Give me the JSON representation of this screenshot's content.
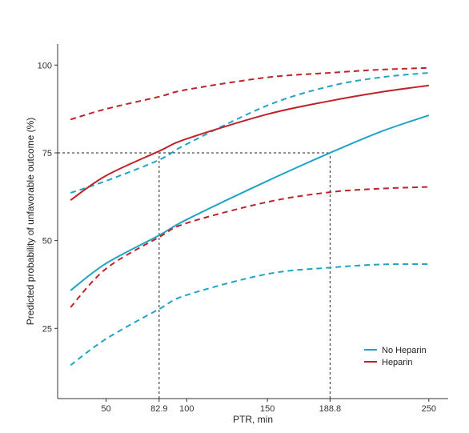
{
  "chart_data": {
    "type": "line",
    "title": "",
    "xlabel": "PTR, min",
    "ylabel": "Predicted probability of unfavorable outcome (%)",
    "xlim": [
      20,
      262
    ],
    "ylim": [
      5,
      106
    ],
    "grid": false,
    "legend_position": "bottom-right",
    "x_ticks": [
      {
        "value": 50,
        "label": "50"
      },
      {
        "value": 82.9,
        "label": "82.9"
      },
      {
        "value": 100,
        "label": "100"
      },
      {
        "value": 150,
        "label": "150"
      },
      {
        "value": 188.8,
        "label": "188.8"
      },
      {
        "value": 250,
        "label": "250"
      }
    ],
    "y_ticks": [
      {
        "value": 25,
        "label": "25"
      },
      {
        "value": 50,
        "label": "50"
      },
      {
        "value": 75,
        "label": "75"
      },
      {
        "value": 100,
        "label": "100"
      }
    ],
    "reference_lines": [
      {
        "kind": "horizontal",
        "y": 75,
        "x_from": 20,
        "x_to": 188.8
      },
      {
        "kind": "vertical",
        "x": 82.9,
        "y_from": 5,
        "y_to": 75
      },
      {
        "kind": "vertical",
        "x": 188.8,
        "y_from": 5,
        "y_to": 75
      }
    ],
    "series": [
      {
        "name": "No Heparin",
        "color": "#1fa3c6",
        "style": "solid",
        "x": [
          28,
          50,
          82.9,
          100,
          150,
          188.8,
          220,
          250
        ],
        "y": [
          35.8,
          43.5,
          51.5,
          56,
          67,
          75,
          81,
          85.7
        ]
      },
      {
        "name": "",
        "color": "#1fa3c6",
        "style": "dashed",
        "x": [
          28,
          50,
          82.9,
          100,
          150,
          188.8,
          220,
          250
        ],
        "y": [
          14.5,
          22,
          30.5,
          34.5,
          40.5,
          42.3,
          43.2,
          43.3
        ]
      },
      {
        "name": "",
        "color": "#1fa3c6",
        "style": "dashed",
        "x": [
          28,
          50,
          82.9,
          100,
          150,
          188.8,
          220,
          250
        ],
        "y": [
          63.6,
          67,
          73,
          77.5,
          88.5,
          94,
          96.5,
          97.8
        ]
      },
      {
        "name": "Heparin",
        "color": "#c0222a",
        "style": "solid",
        "x": [
          28,
          50,
          82.9,
          100,
          150,
          188.8,
          220,
          250
        ],
        "y": [
          61.5,
          68.5,
          75.5,
          79,
          86,
          89.8,
          92.3,
          94.2
        ]
      },
      {
        "name": "",
        "color": "#c0222a",
        "style": "dashed",
        "x": [
          28,
          50,
          82.9,
          100,
          150,
          188.8,
          220,
          250
        ],
        "y": [
          31,
          42,
          51,
          55,
          61,
          63.8,
          64.8,
          65.3
        ]
      },
      {
        "name": "",
        "color": "#c0222a",
        "style": "dashed",
        "x": [
          28,
          50,
          82.9,
          100,
          150,
          188.8,
          220,
          250
        ],
        "y": [
          84.5,
          87.5,
          91,
          93,
          96.5,
          97.8,
          98.7,
          99.2
        ]
      }
    ],
    "legend": [
      {
        "label": "No Heparin",
        "color": "#1fa3c6"
      },
      {
        "label": "Heparin",
        "color": "#c0222a"
      }
    ]
  }
}
